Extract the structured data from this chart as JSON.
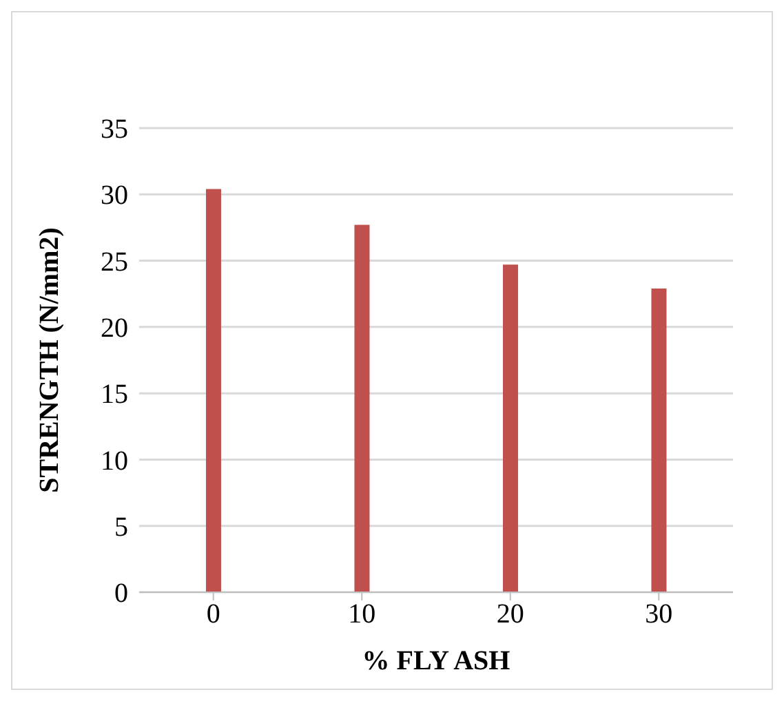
{
  "chart_data": {
    "type": "bar",
    "xlabel": "% FLY ASH",
    "ylabel": "STRENGTH (N/mm2)",
    "categories": [
      "0",
      "10",
      "20",
      "30"
    ],
    "values": [
      30.4,
      27.7,
      24.7,
      22.9
    ],
    "color": "#c0504d",
    "ylim": [
      0,
      35
    ],
    "yticks": [
      0,
      5,
      10,
      15,
      20,
      25,
      30,
      35
    ],
    "grid": "y"
  }
}
